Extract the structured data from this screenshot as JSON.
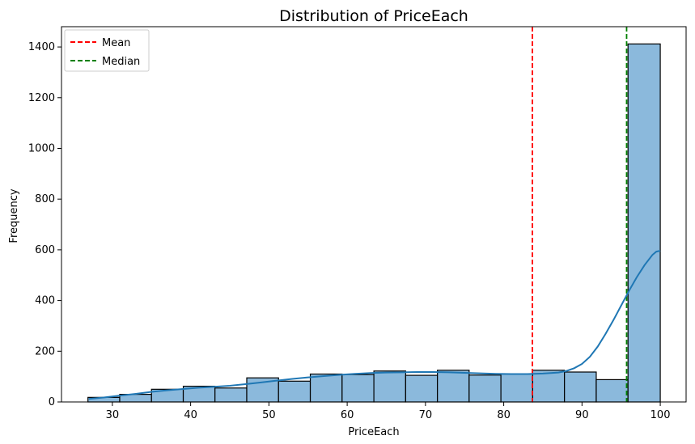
{
  "chart_data": {
    "type": "histogram",
    "title": "Distribution of PriceEach",
    "xlabel": "PriceEach",
    "ylabel": "Frequency",
    "xlim": [
      23.5,
      103.3
    ],
    "ylim": [
      0,
      1480
    ],
    "xticks": [
      30,
      40,
      50,
      60,
      70,
      80,
      90,
      100
    ],
    "yticks": [
      0,
      200,
      400,
      600,
      800,
      1000,
      1200,
      1400
    ],
    "bins": [
      {
        "x0": 26.88,
        "x1": 30.94,
        "count": 18
      },
      {
        "x0": 30.94,
        "x1": 35.0,
        "count": 30
      },
      {
        "x0": 35.0,
        "x1": 39.06,
        "count": 50
      },
      {
        "x0": 39.06,
        "x1": 43.11,
        "count": 62
      },
      {
        "x0": 43.11,
        "x1": 47.17,
        "count": 55
      },
      {
        "x0": 47.17,
        "x1": 51.23,
        "count": 95
      },
      {
        "x0": 51.23,
        "x1": 55.29,
        "count": 82
      },
      {
        "x0": 55.29,
        "x1": 59.35,
        "count": 110
      },
      {
        "x0": 59.35,
        "x1": 63.41,
        "count": 108
      },
      {
        "x0": 63.41,
        "x1": 67.47,
        "count": 122
      },
      {
        "x0": 67.47,
        "x1": 71.53,
        "count": 105
      },
      {
        "x0": 71.53,
        "x1": 75.58,
        "count": 125
      },
      {
        "x0": 75.58,
        "x1": 79.64,
        "count": 106
      },
      {
        "x0": 79.64,
        "x1": 83.7,
        "count": 110
      },
      {
        "x0": 83.7,
        "x1": 87.76,
        "count": 125
      },
      {
        "x0": 87.76,
        "x1": 91.82,
        "count": 118
      },
      {
        "x0": 91.82,
        "x1": 95.88,
        "count": 88
      },
      {
        "x0": 95.88,
        "x1": 100.0,
        "count": 1412
      }
    ],
    "kde": {
      "name": "",
      "color": "#1f77b4",
      "points": [
        [
          27,
          12
        ],
        [
          29,
          18
        ],
        [
          31,
          25
        ],
        [
          33,
          32
        ],
        [
          35,
          40
        ],
        [
          37,
          46
        ],
        [
          39,
          51
        ],
        [
          41,
          56
        ],
        [
          43,
          60
        ],
        [
          45,
          64
        ],
        [
          47,
          70
        ],
        [
          49,
          77
        ],
        [
          51,
          84
        ],
        [
          53,
          91
        ],
        [
          55,
          97
        ],
        [
          57,
          102
        ],
        [
          59,
          107
        ],
        [
          61,
          111
        ],
        [
          63,
          114
        ],
        [
          65,
          116
        ],
        [
          67,
          117
        ],
        [
          69,
          118
        ],
        [
          71,
          118
        ],
        [
          73,
          117
        ],
        [
          75,
          115
        ],
        [
          77,
          113
        ],
        [
          79,
          111
        ],
        [
          81,
          110
        ],
        [
          83,
          110
        ],
        [
          85,
          112
        ],
        [
          87,
          116
        ],
        [
          88,
          122
        ],
        [
          89,
          133
        ],
        [
          90,
          150
        ],
        [
          91,
          178
        ],
        [
          92,
          218
        ],
        [
          93,
          268
        ],
        [
          94,
          322
        ],
        [
          95,
          380
        ],
        [
          96,
          438
        ],
        [
          97,
          492
        ],
        [
          98,
          540
        ],
        [
          99,
          580
        ],
        [
          99.5,
          593
        ],
        [
          100,
          596
        ]
      ]
    },
    "reference_lines": [
      {
        "name": "Mean",
        "x": 83.66,
        "color": "#ff0000",
        "style": "dashed"
      },
      {
        "name": "Median",
        "x": 95.7,
        "color": "#008000",
        "style": "dashed"
      }
    ],
    "legend": {
      "position": "top-left",
      "entries": [
        "Mean",
        "Median"
      ]
    },
    "colors": {
      "bar_fill": "#8bb9dc",
      "bar_edge": "#000000",
      "kde_line": "#1f77b4"
    },
    "grid": false
  }
}
